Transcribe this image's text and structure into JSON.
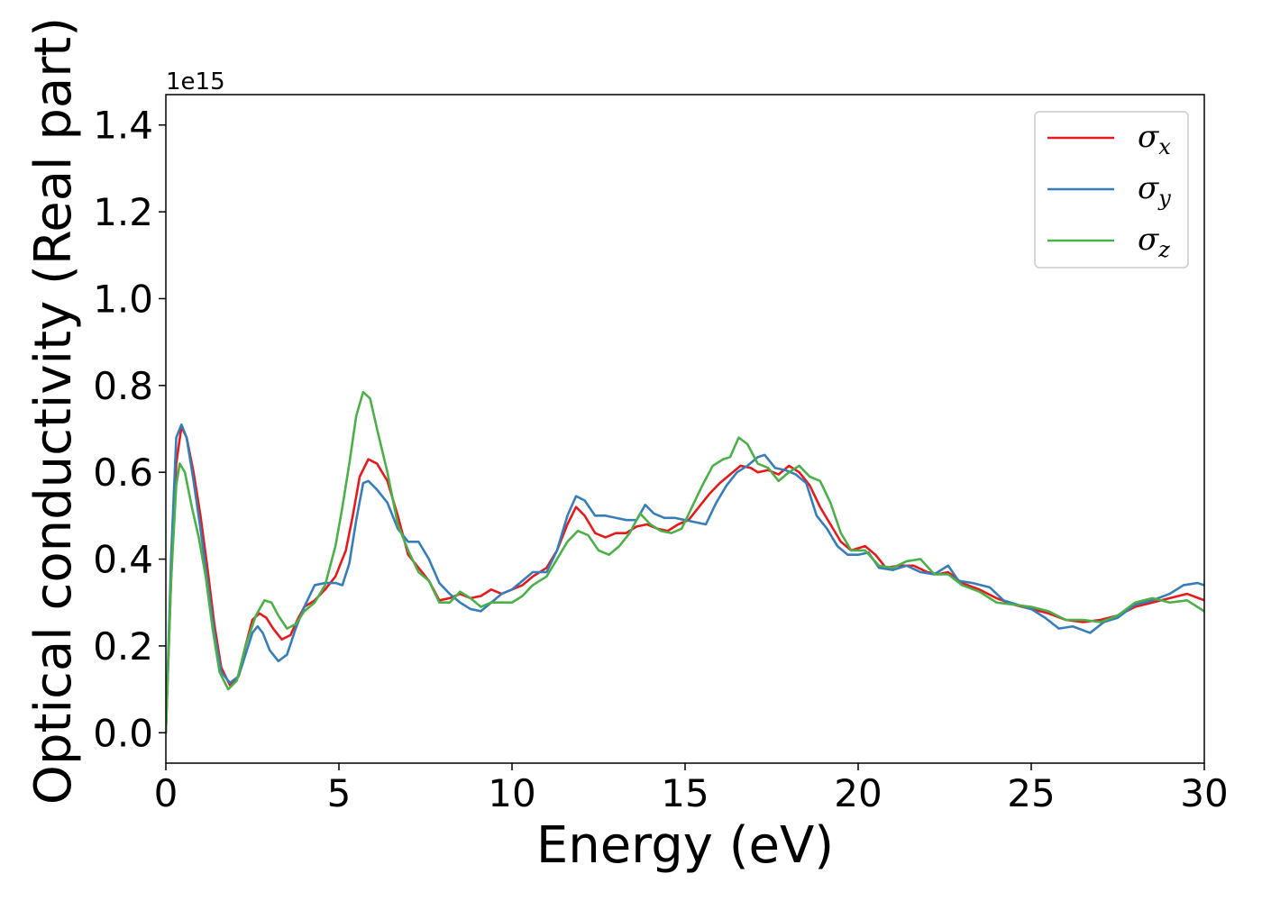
{
  "chart_data": {
    "type": "line",
    "xlabel": "Energy (eV)",
    "ylabel": "Optical conductivity (Real part)",
    "y_offset_label": "1e15",
    "xlim": [
      0,
      30
    ],
    "ylim": [
      -0.07,
      1.47
    ],
    "x_ticks": [
      0,
      5,
      10,
      15,
      20,
      25,
      30
    ],
    "x_tick_labels": [
      "0",
      "5",
      "10",
      "15",
      "20",
      "25",
      "30"
    ],
    "y_ticks": [
      0.0,
      0.2,
      0.4,
      0.6,
      0.8,
      1.0,
      1.2,
      1.4
    ],
    "y_tick_labels": [
      "0.0",
      "0.2",
      "0.4",
      "0.6",
      "0.8",
      "1.0",
      "1.2",
      "1.4"
    ],
    "grid": false,
    "legend_position": "top-right",
    "series": [
      {
        "name": "σx",
        "symbol": "σ",
        "sub": "x",
        "color": "#e41a1c",
        "points": [
          [
            0,
            0.0
          ],
          [
            0.15,
            0.35
          ],
          [
            0.3,
            0.62
          ],
          [
            0.45,
            0.705
          ],
          [
            0.6,
            0.68
          ],
          [
            0.8,
            0.6
          ],
          [
            1.0,
            0.5
          ],
          [
            1.2,
            0.38
          ],
          [
            1.4,
            0.25
          ],
          [
            1.6,
            0.15
          ],
          [
            1.85,
            0.11
          ],
          [
            2.1,
            0.13
          ],
          [
            2.3,
            0.2
          ],
          [
            2.5,
            0.26
          ],
          [
            2.7,
            0.275
          ],
          [
            2.9,
            0.265
          ],
          [
            3.1,
            0.24
          ],
          [
            3.35,
            0.215
          ],
          [
            3.6,
            0.225
          ],
          [
            3.8,
            0.26
          ],
          [
            4.0,
            0.29
          ],
          [
            4.3,
            0.305
          ],
          [
            4.6,
            0.33
          ],
          [
            4.9,
            0.36
          ],
          [
            5.2,
            0.42
          ],
          [
            5.4,
            0.5
          ],
          [
            5.6,
            0.59
          ],
          [
            5.85,
            0.63
          ],
          [
            6.1,
            0.62
          ],
          [
            6.4,
            0.58
          ],
          [
            6.7,
            0.5
          ],
          [
            7.0,
            0.41
          ],
          [
            7.3,
            0.38
          ],
          [
            7.6,
            0.35
          ],
          [
            7.9,
            0.305
          ],
          [
            8.2,
            0.31
          ],
          [
            8.5,
            0.32
          ],
          [
            8.8,
            0.31
          ],
          [
            9.1,
            0.315
          ],
          [
            9.4,
            0.33
          ],
          [
            9.7,
            0.32
          ],
          [
            10.0,
            0.33
          ],
          [
            10.3,
            0.34
          ],
          [
            10.6,
            0.36
          ],
          [
            11.0,
            0.38
          ],
          [
            11.3,
            0.42
          ],
          [
            11.6,
            0.48
          ],
          [
            11.85,
            0.52
          ],
          [
            12.1,
            0.5
          ],
          [
            12.4,
            0.46
          ],
          [
            12.7,
            0.45
          ],
          [
            13.0,
            0.46
          ],
          [
            13.3,
            0.46
          ],
          [
            13.6,
            0.475
          ],
          [
            13.9,
            0.48
          ],
          [
            14.2,
            0.47
          ],
          [
            14.5,
            0.465
          ],
          [
            14.8,
            0.48
          ],
          [
            15.1,
            0.49
          ],
          [
            15.4,
            0.52
          ],
          [
            15.7,
            0.55
          ],
          [
            16.0,
            0.575
          ],
          [
            16.3,
            0.595
          ],
          [
            16.6,
            0.615
          ],
          [
            16.9,
            0.61
          ],
          [
            17.1,
            0.6
          ],
          [
            17.4,
            0.605
          ],
          [
            17.7,
            0.595
          ],
          [
            18.0,
            0.615
          ],
          [
            18.3,
            0.6
          ],
          [
            18.6,
            0.57
          ],
          [
            18.9,
            0.52
          ],
          [
            19.2,
            0.48
          ],
          [
            19.5,
            0.44
          ],
          [
            19.8,
            0.42
          ],
          [
            20.2,
            0.43
          ],
          [
            20.5,
            0.41
          ],
          [
            20.8,
            0.38
          ],
          [
            21.2,
            0.385
          ],
          [
            21.6,
            0.385
          ],
          [
            22.0,
            0.37
          ],
          [
            22.3,
            0.365
          ],
          [
            22.6,
            0.37
          ],
          [
            23.0,
            0.345
          ],
          [
            23.5,
            0.33
          ],
          [
            24.0,
            0.31
          ],
          [
            24.5,
            0.295
          ],
          [
            25.0,
            0.285
          ],
          [
            25.5,
            0.275
          ],
          [
            26.0,
            0.26
          ],
          [
            26.5,
            0.255
          ],
          [
            27.0,
            0.26
          ],
          [
            27.5,
            0.27
          ],
          [
            28.0,
            0.29
          ],
          [
            28.5,
            0.3
          ],
          [
            29.0,
            0.31
          ],
          [
            29.5,
            0.32
          ],
          [
            30.0,
            0.305
          ]
        ]
      },
      {
        "name": "σy",
        "symbol": "σ",
        "sub": "y",
        "color": "#377eb8",
        "points": [
          [
            0,
            0.0
          ],
          [
            0.15,
            0.4
          ],
          [
            0.3,
            0.68
          ],
          [
            0.45,
            0.71
          ],
          [
            0.6,
            0.68
          ],
          [
            0.8,
            0.58
          ],
          [
            1.0,
            0.47
          ],
          [
            1.2,
            0.35
          ],
          [
            1.4,
            0.23
          ],
          [
            1.6,
            0.14
          ],
          [
            1.85,
            0.115
          ],
          [
            2.1,
            0.13
          ],
          [
            2.3,
            0.18
          ],
          [
            2.5,
            0.23
          ],
          [
            2.65,
            0.245
          ],
          [
            2.8,
            0.23
          ],
          [
            3.0,
            0.19
          ],
          [
            3.25,
            0.165
          ],
          [
            3.5,
            0.18
          ],
          [
            3.75,
            0.24
          ],
          [
            4.0,
            0.29
          ],
          [
            4.3,
            0.34
          ],
          [
            4.6,
            0.345
          ],
          [
            4.9,
            0.345
          ],
          [
            5.1,
            0.34
          ],
          [
            5.3,
            0.39
          ],
          [
            5.5,
            0.49
          ],
          [
            5.7,
            0.575
          ],
          [
            5.85,
            0.58
          ],
          [
            6.1,
            0.56
          ],
          [
            6.4,
            0.53
          ],
          [
            6.7,
            0.47
          ],
          [
            7.0,
            0.44
          ],
          [
            7.3,
            0.44
          ],
          [
            7.6,
            0.4
          ],
          [
            7.9,
            0.345
          ],
          [
            8.2,
            0.32
          ],
          [
            8.5,
            0.3
          ],
          [
            8.8,
            0.285
          ],
          [
            9.1,
            0.28
          ],
          [
            9.4,
            0.3
          ],
          [
            9.7,
            0.32
          ],
          [
            10.0,
            0.33
          ],
          [
            10.3,
            0.35
          ],
          [
            10.6,
            0.37
          ],
          [
            11.0,
            0.37
          ],
          [
            11.3,
            0.42
          ],
          [
            11.6,
            0.5
          ],
          [
            11.85,
            0.545
          ],
          [
            12.1,
            0.535
          ],
          [
            12.4,
            0.5
          ],
          [
            12.7,
            0.5
          ],
          [
            13.0,
            0.495
          ],
          [
            13.3,
            0.49
          ],
          [
            13.6,
            0.49
          ],
          [
            13.85,
            0.525
          ],
          [
            14.1,
            0.505
          ],
          [
            14.4,
            0.495
          ],
          [
            14.7,
            0.495
          ],
          [
            15.0,
            0.49
          ],
          [
            15.3,
            0.485
          ],
          [
            15.6,
            0.48
          ],
          [
            15.9,
            0.53
          ],
          [
            16.2,
            0.57
          ],
          [
            16.5,
            0.6
          ],
          [
            16.8,
            0.615
          ],
          [
            17.1,
            0.635
          ],
          [
            17.3,
            0.64
          ],
          [
            17.6,
            0.61
          ],
          [
            17.9,
            0.605
          ],
          [
            18.2,
            0.595
          ],
          [
            18.5,
            0.575
          ],
          [
            18.8,
            0.5
          ],
          [
            19.1,
            0.47
          ],
          [
            19.4,
            0.43
          ],
          [
            19.7,
            0.41
          ],
          [
            20.0,
            0.41
          ],
          [
            20.3,
            0.415
          ],
          [
            20.6,
            0.38
          ],
          [
            21.0,
            0.375
          ],
          [
            21.4,
            0.385
          ],
          [
            21.8,
            0.37
          ],
          [
            22.2,
            0.365
          ],
          [
            22.6,
            0.385
          ],
          [
            22.9,
            0.35
          ],
          [
            23.3,
            0.345
          ],
          [
            23.8,
            0.335
          ],
          [
            24.2,
            0.305
          ],
          [
            24.6,
            0.295
          ],
          [
            25.0,
            0.285
          ],
          [
            25.4,
            0.265
          ],
          [
            25.8,
            0.24
          ],
          [
            26.2,
            0.245
          ],
          [
            26.7,
            0.23
          ],
          [
            27.1,
            0.255
          ],
          [
            27.5,
            0.265
          ],
          [
            28.0,
            0.295
          ],
          [
            28.5,
            0.305
          ],
          [
            29.0,
            0.32
          ],
          [
            29.4,
            0.34
          ],
          [
            29.8,
            0.345
          ],
          [
            30.0,
            0.34
          ]
        ]
      },
      {
        "name": "σz",
        "symbol": "σ",
        "sub": "z",
        "color": "#4daf4a",
        "points": [
          [
            0,
            0.0
          ],
          [
            0.15,
            0.35
          ],
          [
            0.3,
            0.57
          ],
          [
            0.4,
            0.62
          ],
          [
            0.55,
            0.6
          ],
          [
            0.75,
            0.52
          ],
          [
            0.95,
            0.45
          ],
          [
            1.15,
            0.36
          ],
          [
            1.35,
            0.24
          ],
          [
            1.55,
            0.14
          ],
          [
            1.8,
            0.1
          ],
          [
            2.05,
            0.12
          ],
          [
            2.3,
            0.2
          ],
          [
            2.6,
            0.27
          ],
          [
            2.85,
            0.305
          ],
          [
            3.05,
            0.3
          ],
          [
            3.25,
            0.27
          ],
          [
            3.5,
            0.24
          ],
          [
            3.75,
            0.25
          ],
          [
            4.0,
            0.28
          ],
          [
            4.3,
            0.3
          ],
          [
            4.6,
            0.34
          ],
          [
            4.9,
            0.43
          ],
          [
            5.1,
            0.52
          ],
          [
            5.3,
            0.62
          ],
          [
            5.5,
            0.73
          ],
          [
            5.7,
            0.785
          ],
          [
            5.9,
            0.77
          ],
          [
            6.1,
            0.7
          ],
          [
            6.4,
            0.6
          ],
          [
            6.7,
            0.48
          ],
          [
            7.0,
            0.42
          ],
          [
            7.3,
            0.37
          ],
          [
            7.6,
            0.35
          ],
          [
            7.9,
            0.3
          ],
          [
            8.2,
            0.3
          ],
          [
            8.5,
            0.325
          ],
          [
            8.8,
            0.31
          ],
          [
            9.1,
            0.29
          ],
          [
            9.4,
            0.3
          ],
          [
            9.7,
            0.3
          ],
          [
            10.0,
            0.3
          ],
          [
            10.3,
            0.315
          ],
          [
            10.6,
            0.34
          ],
          [
            11.0,
            0.36
          ],
          [
            11.3,
            0.4
          ],
          [
            11.6,
            0.44
          ],
          [
            11.9,
            0.465
          ],
          [
            12.2,
            0.455
          ],
          [
            12.5,
            0.42
          ],
          [
            12.8,
            0.41
          ],
          [
            13.1,
            0.43
          ],
          [
            13.4,
            0.46
          ],
          [
            13.7,
            0.505
          ],
          [
            14.0,
            0.48
          ],
          [
            14.3,
            0.465
          ],
          [
            14.6,
            0.46
          ],
          [
            14.9,
            0.47
          ],
          [
            15.2,
            0.52
          ],
          [
            15.5,
            0.57
          ],
          [
            15.8,
            0.615
          ],
          [
            16.1,
            0.63
          ],
          [
            16.3,
            0.635
          ],
          [
            16.55,
            0.68
          ],
          [
            16.8,
            0.665
          ],
          [
            17.1,
            0.62
          ],
          [
            17.4,
            0.61
          ],
          [
            17.7,
            0.58
          ],
          [
            18.0,
            0.6
          ],
          [
            18.3,
            0.615
          ],
          [
            18.6,
            0.59
          ],
          [
            18.9,
            0.58
          ],
          [
            19.2,
            0.53
          ],
          [
            19.5,
            0.46
          ],
          [
            19.8,
            0.42
          ],
          [
            20.2,
            0.42
          ],
          [
            20.6,
            0.385
          ],
          [
            21.0,
            0.38
          ],
          [
            21.4,
            0.395
          ],
          [
            21.8,
            0.4
          ],
          [
            22.2,
            0.365
          ],
          [
            22.6,
            0.365
          ],
          [
            23.0,
            0.34
          ],
          [
            23.5,
            0.325
          ],
          [
            24.0,
            0.3
          ],
          [
            24.5,
            0.295
          ],
          [
            25.0,
            0.29
          ],
          [
            25.5,
            0.28
          ],
          [
            26.0,
            0.26
          ],
          [
            26.5,
            0.26
          ],
          [
            27.0,
            0.255
          ],
          [
            27.5,
            0.27
          ],
          [
            28.0,
            0.3
          ],
          [
            28.5,
            0.31
          ],
          [
            29.0,
            0.3
          ],
          [
            29.5,
            0.305
          ],
          [
            30.0,
            0.28
          ]
        ]
      }
    ]
  }
}
